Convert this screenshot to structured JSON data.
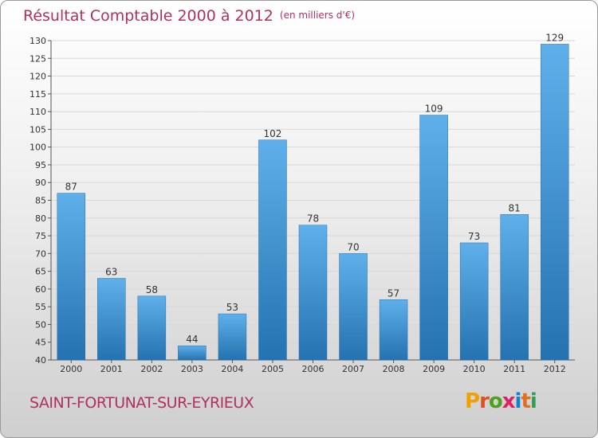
{
  "header": {
    "title": "Résultat Comptable 2000 à 2012",
    "unit": "(en milliers d'€)"
  },
  "footer": {
    "commune": "SAINT-FORTUNAT-SUR-EYRIEUX",
    "logo_letters": [
      "P",
      "r",
      "o",
      "x",
      "i",
      "t",
      "i"
    ],
    "logo_colors": [
      "#f0a000",
      "#e05020",
      "#50a020",
      "#e02060",
      "#1080d0",
      "#e07020",
      "#30a050"
    ]
  },
  "chart_data": {
    "type": "bar",
    "title": "Résultat Comptable 2000 à 2012",
    "subtitle": "(en milliers d'€)",
    "categories": [
      "2000",
      "2001",
      "2002",
      "2003",
      "2004",
      "2005",
      "2006",
      "2007",
      "2008",
      "2009",
      "2010",
      "2011",
      "2012"
    ],
    "values": [
      87,
      63,
      58,
      44,
      53,
      102,
      78,
      70,
      57,
      109,
      73,
      81,
      129
    ],
    "ylim": [
      40,
      130
    ],
    "yticks": [
      40,
      45,
      50,
      55,
      60,
      65,
      70,
      75,
      80,
      85,
      90,
      95,
      100,
      105,
      110,
      115,
      120,
      125,
      130
    ],
    "grid": true,
    "bar_color": "#3a8fd0"
  }
}
